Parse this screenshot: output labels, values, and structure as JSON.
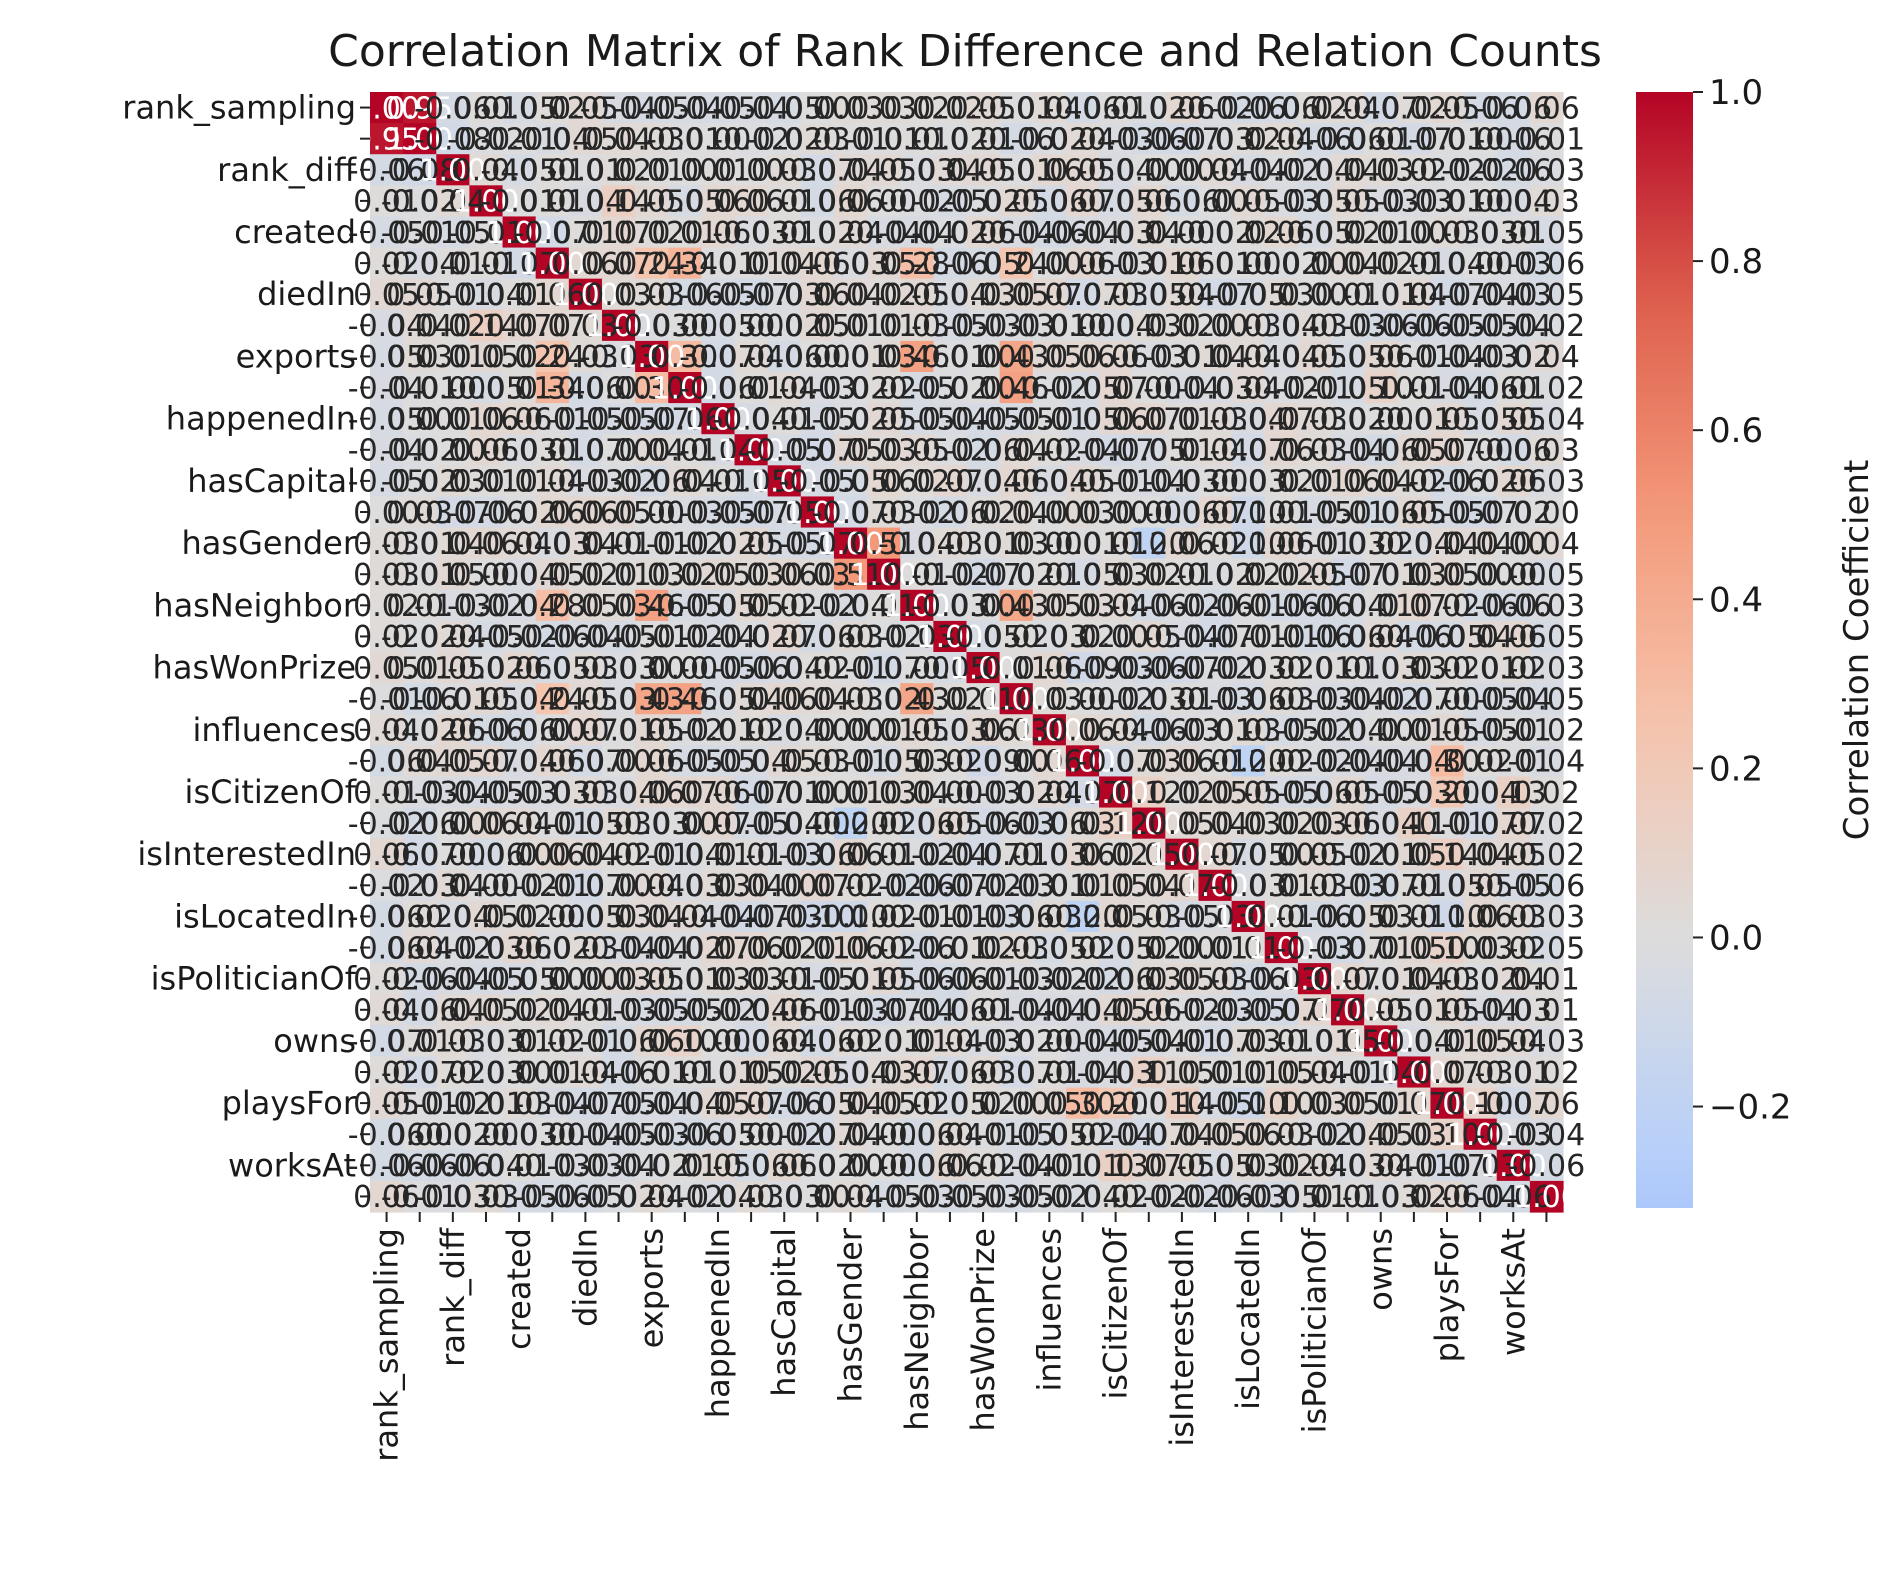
{
  "chart_data": {
    "type": "heatmap",
    "title": "Correlation Matrix of Rank Difference and Relation Counts",
    "xlabel": "",
    "ylabel": "",
    "tick_labels": [
      "rank_sampling",
      "rank_diff",
      "created",
      "diedIn",
      "exports",
      "happenedIn",
      "hasCapital",
      "hasGender",
      "hasNeighbor",
      "hasWonPrize",
      "influences",
      "isCitizenOf",
      "isInterestedIn",
      "isLocatedIn",
      "isPoliticianOf",
      "owns",
      "playsFor",
      "worksAt"
    ],
    "n": 36,
    "colormap": "coolwarm",
    "vmin": -0.32,
    "vmax": 1.0,
    "colorbar": {
      "label": "Correlation Coefficient",
      "ticks": [
        "1.0",
        "0.8",
        "0.6",
        "0.4",
        "0.2",
        "0.0",
        "−0.2"
      ],
      "tick_values": [
        1.0,
        0.8,
        0.6,
        0.4,
        0.2,
        0.0,
        -0.2
      ]
    },
    "diagonal_value": 1.0,
    "notable_correlations": [
      {
        "i": 0,
        "j": 1,
        "value": 0.95
      },
      {
        "i": 1,
        "j": 2,
        "value": -0.08
      },
      {
        "i": 5,
        "j": 8,
        "value": 0.24
      },
      {
        "i": 5,
        "j": 9,
        "value": 0.34
      },
      {
        "i": 5,
        "j": 16,
        "value": 0.28
      },
      {
        "i": 5,
        "j": 19,
        "value": 0.24
      },
      {
        "i": 8,
        "j": 16,
        "value": 0.46
      },
      {
        "i": 8,
        "j": 19,
        "value": 0.43
      },
      {
        "i": 9,
        "j": 19,
        "value": 0.46
      },
      {
        "i": 8,
        "j": 9,
        "value": 0.3
      },
      {
        "i": 16,
        "j": 19,
        "value": 0.43
      },
      {
        "i": 7,
        "j": 3,
        "value": 0.14
      },
      {
        "i": 14,
        "j": 15,
        "value": 0.51
      },
      {
        "i": 20,
        "j": 21,
        "value": 0.06
      },
      {
        "i": 14,
        "j": 23,
        "value": -0.2
      },
      {
        "i": 21,
        "j": 22,
        "value": -0.07
      },
      {
        "i": 26,
        "j": 28,
        "value": -0.06
      },
      {
        "i": 21,
        "j": 26,
        "value": -0.2
      },
      {
        "i": 21,
        "j": 32,
        "value": 0.3
      },
      {
        "i": 22,
        "j": 23,
        "value": 0.12
      },
      {
        "i": 22,
        "j": 32,
        "value": 0.2
      },
      {
        "i": 14,
        "j": 26,
        "value": -0.1
      },
      {
        "i": 26,
        "j": 32,
        "value": -0.1
      },
      {
        "i": 13,
        "j": 26,
        "value": -0.1
      },
      {
        "i": 18,
        "j": 21,
        "value": -0.09
      },
      {
        "i": 9,
        "j": 30,
        "value": 0.1
      },
      {
        "i": 16,
        "j": 27,
        "value": -0.06
      },
      {
        "i": 23,
        "j": 31,
        "value": 0.11
      },
      {
        "i": 22,
        "j": 34,
        "value": 0.13
      },
      {
        "i": 24,
        "j": 32,
        "value": 0.14
      },
      {
        "i": 27,
        "j": 32,
        "value": 0.1
      },
      {
        "i": 32,
        "j": 33,
        "value": 0.1
      },
      {
        "i": 34,
        "j": 27,
        "value": 0.02
      }
    ]
  }
}
